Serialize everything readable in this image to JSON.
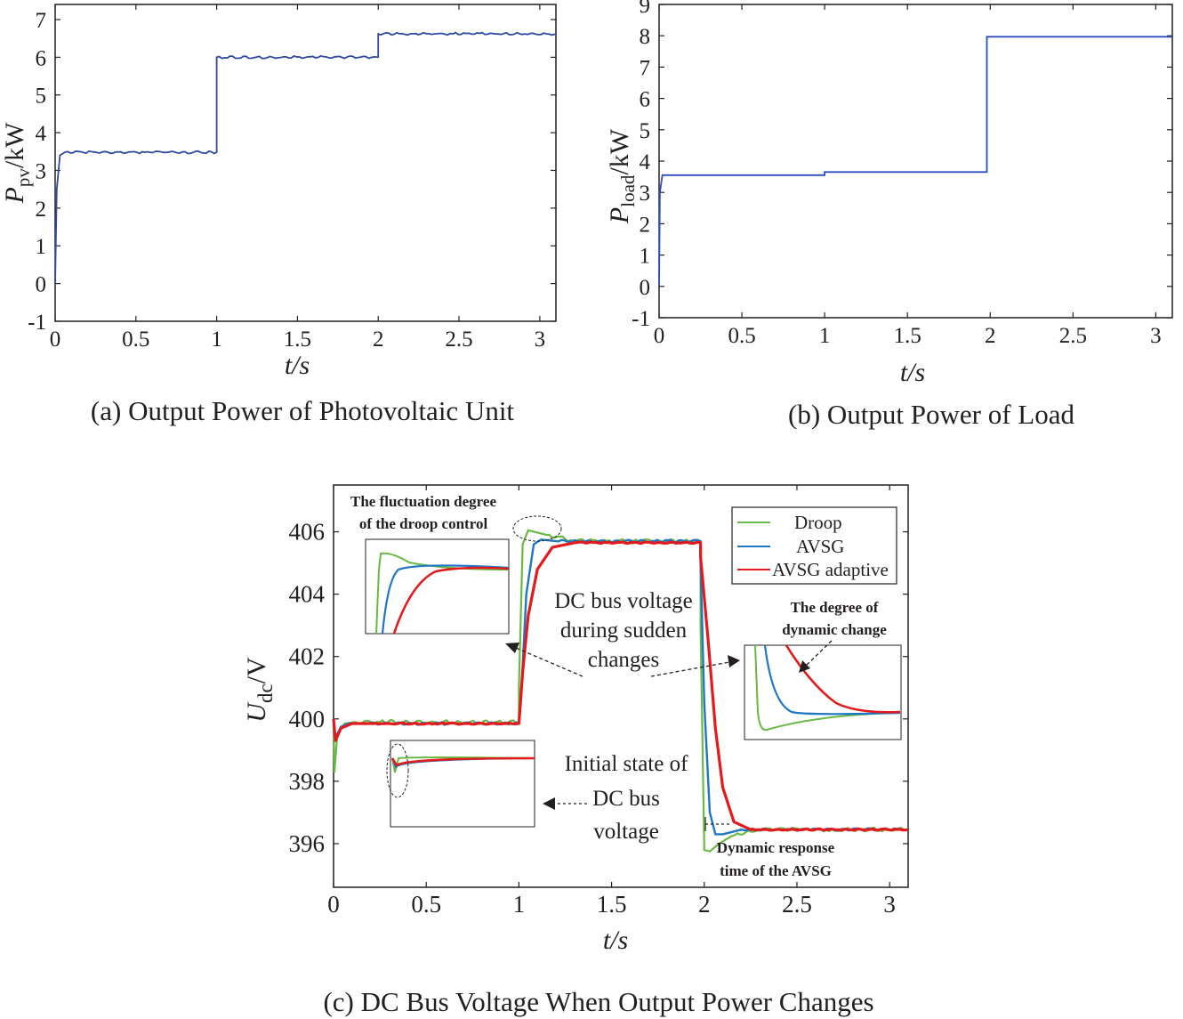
{
  "chart_data": [
    {
      "type": "line",
      "id": "a",
      "caption": "(a) Output Power of Photovoltaic Unit",
      "xlabel": "t/s",
      "ylabel_main": "P",
      "ylabel_sub": "pv",
      "ylabel_unit": "/kW",
      "xlim": [
        0,
        3.1
      ],
      "ylim": [
        -1,
        7.4
      ],
      "xticks": [
        0,
        0.5,
        1,
        1.5,
        2,
        2.5,
        3
      ],
      "xtick_labels": [
        "0",
        "0.5",
        "1",
        "1.5",
        "2",
        "2.5",
        "3"
      ],
      "yticks": [
        -1,
        0,
        1,
        2,
        3,
        4,
        5,
        6,
        7
      ],
      "ytick_labels": [
        "-1",
        "0",
        "1",
        "2",
        "3",
        "4",
        "5",
        "6",
        "7"
      ],
      "color": "#2f4aa0",
      "series": [
        {
          "name": "Ppv",
          "x": [
            0,
            0.01,
            0.03,
            0.06,
            1.0,
            1.0,
            2.0,
            2.0,
            3.1
          ],
          "y": [
            0,
            2.5,
            3.4,
            3.48,
            3.48,
            6.0,
            6.0,
            6.62,
            6.62
          ]
        }
      ]
    },
    {
      "type": "line",
      "id": "b",
      "caption": "(b) Output Power of Load",
      "xlabel": "t/s",
      "ylabel_main": "P",
      "ylabel_sub": "load",
      "ylabel_unit": "/kW",
      "xlim": [
        0,
        3.1
      ],
      "ylim": [
        -1,
        9
      ],
      "xticks": [
        0,
        0.5,
        1,
        1.5,
        2,
        2.5,
        3
      ],
      "xtick_labels": [
        "0",
        "0.5",
        "1",
        "1.5",
        "2",
        "2.5",
        "3"
      ],
      "yticks": [
        -1,
        0,
        1,
        2,
        3,
        4,
        5,
        6,
        7,
        8,
        9
      ],
      "ytick_labels": [
        "-1",
        "0",
        "1",
        "2",
        "3",
        "4",
        "5",
        "6",
        "7",
        "8",
        "9"
      ],
      "color": "#2c4dbd",
      "series": [
        {
          "name": "Pload",
          "x": [
            0,
            0.005,
            0.02,
            1.0,
            1.0,
            1.98,
            1.98,
            3.1
          ],
          "y": [
            0,
            3.0,
            3.55,
            3.55,
            3.65,
            3.65,
            7.97,
            7.97
          ]
        }
      ]
    },
    {
      "type": "line",
      "id": "c",
      "caption": "(c) DC Bus Voltage When Output Power Changes",
      "xlabel": "t/s",
      "ylabel_main": "U",
      "ylabel_sub": "dc",
      "ylabel_unit": "/V",
      "xlim": [
        0,
        3.1
      ],
      "ylim": [
        394.6,
        407.5
      ],
      "xticks": [
        0,
        0.5,
        1,
        1.5,
        2,
        2.5,
        3
      ],
      "xtick_labels": [
        "0",
        "0.5",
        "1",
        "1.5",
        "2",
        "2.5",
        "3"
      ],
      "yticks": [
        396,
        398,
        400,
        402,
        404,
        406
      ],
      "ytick_labels": [
        "396",
        "398",
        "400",
        "402",
        "404",
        "406"
      ],
      "legend": {
        "position": "top-right",
        "entries": [
          "Droop",
          "AVSG",
          "AVSG adaptive"
        ]
      },
      "series": [
        {
          "name": "Droop",
          "color": "#6ab945",
          "x": [
            0,
            0.005,
            0.02,
            0.06,
            0.12,
            1.0,
            1.0,
            1.02,
            1.05,
            1.15,
            1.3,
            1.98,
            1.98,
            2.0,
            2.03,
            2.08,
            2.15,
            2.3,
            3.1
          ],
          "y": [
            400,
            398.3,
            399.5,
            399.85,
            399.9,
            399.9,
            401.0,
            405.6,
            406.05,
            405.9,
            405.7,
            405.7,
            403.0,
            395.8,
            395.75,
            396.0,
            396.25,
            396.45,
            396.45
          ]
        },
        {
          "name": "AVSG",
          "color": "#1f77c4",
          "x": [
            0,
            0.01,
            0.04,
            0.08,
            0.15,
            1.0,
            1.01,
            1.04,
            1.08,
            1.12,
            1.2,
            1.98,
            1.98,
            2.0,
            2.03,
            2.06,
            2.1,
            2.2,
            3.1
          ],
          "y": [
            400,
            399.4,
            399.75,
            399.85,
            399.85,
            399.85,
            400.5,
            404.0,
            405.6,
            405.75,
            405.7,
            405.7,
            405.0,
            400.5,
            397.0,
            396.3,
            396.3,
            396.45,
            396.45
          ]
        },
        {
          "name": "AVSG adaptive",
          "color": "#e31a1c",
          "x": [
            0,
            0.01,
            0.04,
            0.1,
            0.2,
            1.0,
            1.02,
            1.05,
            1.1,
            1.18,
            1.3,
            1.98,
            1.98,
            2.02,
            2.06,
            2.1,
            2.16,
            2.25,
            3.1
          ],
          "y": [
            400,
            399.3,
            399.7,
            399.85,
            399.85,
            399.85,
            401.5,
            403.3,
            404.8,
            405.5,
            405.65,
            405.65,
            405.2,
            402.6,
            399.7,
            397.8,
            396.7,
            396.45,
            396.45
          ]
        }
      ],
      "annotations": {
        "fluctuation_line1": "The fluctuation degree",
        "fluctuation_line2": "of the droop control",
        "dc_change_line1": "DC bus voltage",
        "dc_change_line2": "during sudden",
        "dc_change_line3": "changes",
        "degree_line1": "The degree of",
        "degree_line2": "dynamic change",
        "initial_line1": "Initial state of",
        "initial_line2": "DC bus",
        "initial_line3": "voltage",
        "response_line1": "Dynamic response",
        "response_line2": "time of the AVSG"
      }
    }
  ]
}
